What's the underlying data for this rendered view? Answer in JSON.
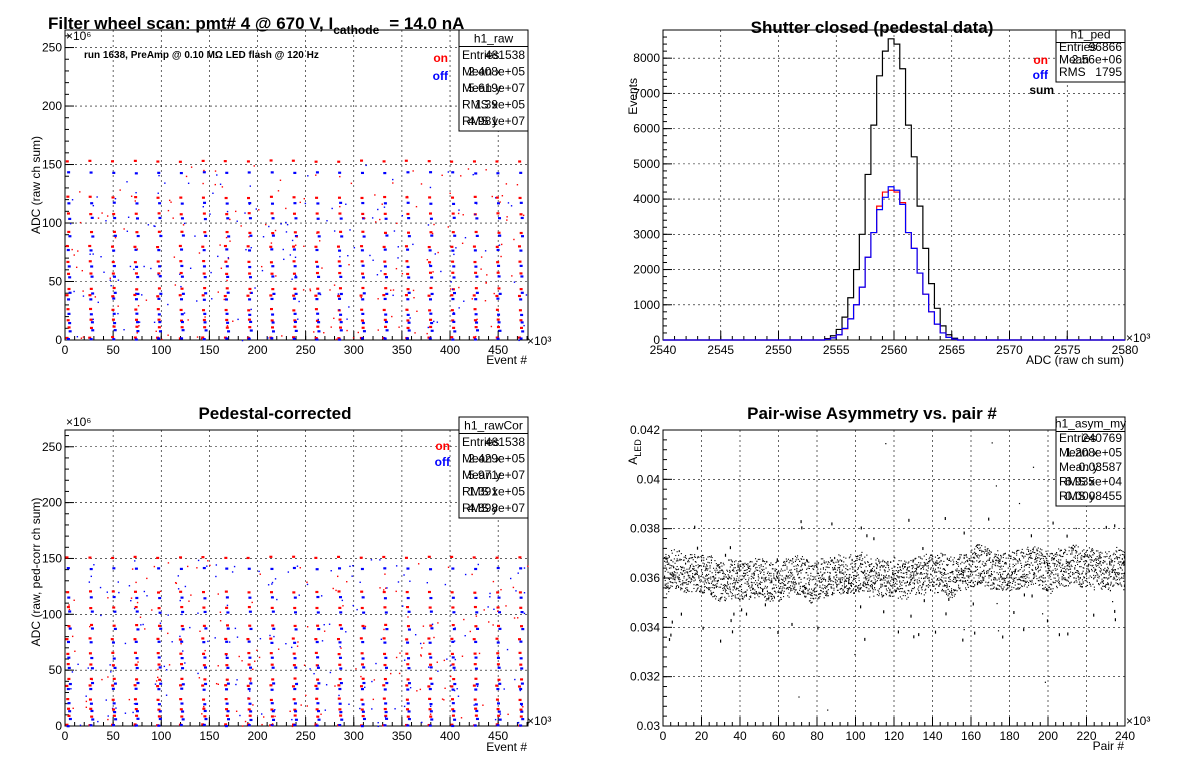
{
  "colors": {
    "on": "#ff0000",
    "off": "#0000ff",
    "sum": "#000000",
    "black": "#000000"
  },
  "chart_data": [
    {
      "type": "scatter",
      "title": "Filter wheel scan: pmt#   4 @   670 V, I",
      "title_subscript": "cathode",
      "title_suffix": "= 14.0 nA",
      "xlabel": "Event #",
      "ylabel": "ADC (raw ch sum)",
      "x_multiplier": "×10³",
      "y_multiplier": "×10⁶",
      "xlim": [
        0,
        481
      ],
      "ylim": [
        0,
        265
      ],
      "xticks": [
        0,
        50,
        100,
        150,
        200,
        250,
        300,
        350,
        400,
        450
      ],
      "yticks": [
        0,
        50,
        100,
        150,
        200,
        250
      ],
      "grid": true,
      "annotation": "run 1638, PreAmp @ 0.10 MΩ  LED flash @  120 Hz",
      "legend": [
        {
          "name": "on",
          "color_key": "on"
        },
        {
          "name": "off",
          "color_key": "off"
        }
      ],
      "stats": {
        "name": "h1_raw",
        "rows": [
          {
            "label": "Entries",
            "value": "481538"
          },
          {
            "label": "Mean x",
            "value": "2.408e+05"
          },
          {
            "label": "Mean y",
            "value": "5.619e+07"
          },
          {
            "label": "RMS x",
            "value": "1.39e+05"
          },
          {
            "label": "RMS y",
            "value": "4.981e+07"
          }
        ]
      },
      "pattern": {
        "cycle_length": 23.5,
        "levels_on": [
          153,
          122,
          108,
          92,
          80,
          67,
          57,
          44,
          38,
          26,
          17,
          11,
          2
        ],
        "levels_off": [
          143,
          117,
          104,
          89,
          77,
          63,
          54,
          40,
          35,
          22,
          15,
          8,
          1
        ]
      }
    },
    {
      "type": "histogram",
      "title": "Shutter closed (pedestal data)",
      "xlabel": "ADC (raw ch sum)",
      "ylabel": "Events",
      "x_multiplier": "×10³",
      "xlim": [
        2540,
        2580
      ],
      "ylim": [
        0,
        8800
      ],
      "xticks": [
        2540,
        2545,
        2550,
        2555,
        2560,
        2565,
        2570,
        2575,
        2580
      ],
      "yticks": [
        0,
        1000,
        2000,
        3000,
        4000,
        5000,
        6000,
        7000,
        8000
      ],
      "grid": true,
      "legend": [
        {
          "name": "on",
          "color_key": "on"
        },
        {
          "name": "off",
          "color_key": "off"
        },
        {
          "name": "sum",
          "color_key": "sum"
        }
      ],
      "stats": {
        "name": "h1_ped",
        "rows": [
          {
            "label": "Entries",
            "value": "96866"
          },
          {
            "label": "Mean",
            "value": "2.56e+06"
          },
          {
            "label": "RMS",
            "value": "1795"
          }
        ]
      },
      "bin_width": 0.5,
      "bin_start": 2554.0,
      "series": [
        {
          "name": "sum",
          "color_key": "sum",
          "values": [
            40,
            120,
            300,
            650,
            1200,
            2000,
            3000,
            4700,
            6100,
            7500,
            8200,
            8550,
            8400,
            7700,
            6100,
            5200,
            3800,
            2600,
            1600,
            900,
            400,
            150,
            50
          ]
        },
        {
          "name": "on",
          "color_key": "on",
          "values": [
            20,
            60,
            150,
            320,
            600,
            1000,
            1500,
            2350,
            3050,
            3800,
            4200,
            4250,
            4200,
            3900,
            3050,
            2600,
            1900,
            1300,
            800,
            450,
            200,
            75,
            25
          ]
        },
        {
          "name": "off",
          "color_key": "off",
          "values": [
            20,
            60,
            150,
            330,
            600,
            1000,
            1500,
            2350,
            3050,
            3700,
            4050,
            4350,
            4250,
            3850,
            3050,
            2600,
            1900,
            1300,
            800,
            450,
            200,
            75,
            25
          ]
        }
      ]
    },
    {
      "type": "scatter",
      "title": "Pedestal-corrected",
      "xlabel": "Event #",
      "ylabel": "ADC (raw, ped-corr ch sum)",
      "x_multiplier": "×10³",
      "y_multiplier": "×10⁶",
      "xlim": [
        0,
        481
      ],
      "ylim": [
        0,
        265
      ],
      "xticks": [
        0,
        50,
        100,
        150,
        200,
        250,
        300,
        350,
        400,
        450
      ],
      "yticks": [
        0,
        50,
        100,
        150,
        200,
        250
      ],
      "grid": true,
      "legend": [
        {
          "name": "on",
          "color_key": "on"
        },
        {
          "name": "off",
          "color_key": "off"
        }
      ],
      "stats": {
        "name": "h1_rawCor",
        "rows": [
          {
            "label": "Entries",
            "value": "481538"
          },
          {
            "label": "Mean x",
            "value": "2.429e+05"
          },
          {
            "label": "Mean y",
            "value": "5.971e+07"
          },
          {
            "label": "RMS x",
            "value": "1.391e+05"
          },
          {
            "label": "RMS y",
            "value": "4.898e+07"
          }
        ]
      },
      "pattern": {
        "cycle_length": 23.5,
        "levels_on": [
          151,
          120,
          106,
          90,
          78,
          65,
          55,
          42,
          36,
          24,
          15,
          9,
          1
        ],
        "levels_off": [
          141,
          115,
          102,
          87,
          75,
          61,
          52,
          38,
          33,
          20,
          13,
          6,
          0.5
        ]
      }
    },
    {
      "type": "scatter",
      "title": "Pair-wise Asymmetry vs. pair #",
      "xlabel": "Pair #",
      "ylabel": "A",
      "ylabel_subscript": "LED",
      "x_multiplier": "×10³",
      "xlim": [
        0,
        240
      ],
      "ylim": [
        0.03,
        0.042
      ],
      "xticks": [
        0,
        20,
        40,
        60,
        80,
        100,
        120,
        140,
        160,
        180,
        200,
        220,
        240
      ],
      "yticks": [
        0.03,
        0.032,
        0.034,
        0.036,
        0.038,
        0.04,
        0.042
      ],
      "grid": true,
      "stats": {
        "name": "h1_asym_my",
        "rows": [
          {
            "label": "Entries",
            "value": "240769"
          },
          {
            "label": "Mean x",
            "value": "1.208e+05"
          },
          {
            "label": "Mean y",
            "value": "0.03587"
          },
          {
            "label": "RMS x",
            "value": "6.935e+04"
          },
          {
            "label": "RMS y",
            "value": "0.0008455"
          }
        ]
      },
      "band": {
        "center": 0.0362,
        "half_width": 0.0008,
        "spike_max": 0.0385,
        "dip_min": 0.0335,
        "outlier_min": 0.0305,
        "outlier_max": 0.0418
      }
    }
  ]
}
